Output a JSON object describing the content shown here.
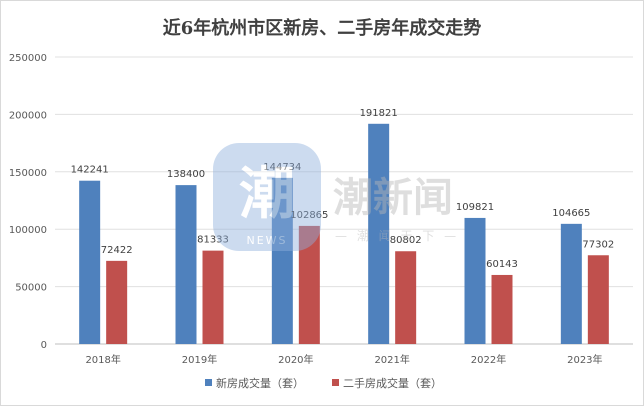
{
  "chart_data": {
    "type": "bar",
    "title": "近6年杭州市区新房、二手房年成交走势",
    "categories": [
      "2018年",
      "2019年",
      "2020年",
      "2021年",
      "2022年",
      "2023年"
    ],
    "series": [
      {
        "name": "新房成交量（套）",
        "color": "#4f81bd",
        "values": [
          142241,
          138400,
          144734,
          191821,
          109821,
          104665
        ]
      },
      {
        "name": "二手房成交量（套）",
        "color": "#c0504d",
        "values": [
          72422,
          81333,
          102865,
          80802,
          60143,
          77302
        ]
      }
    ],
    "ylim": [
      0,
      250000
    ],
    "yticks": [
      0,
      50000,
      100000,
      150000,
      200000,
      250000
    ],
    "grid": true,
    "legend_position": "bottom"
  },
  "watermark": {
    "logo_char": "潮",
    "logo_sub": "NEWS",
    "brand": "潮新闻",
    "slogan": "— 潮 闻 天 下 —"
  }
}
